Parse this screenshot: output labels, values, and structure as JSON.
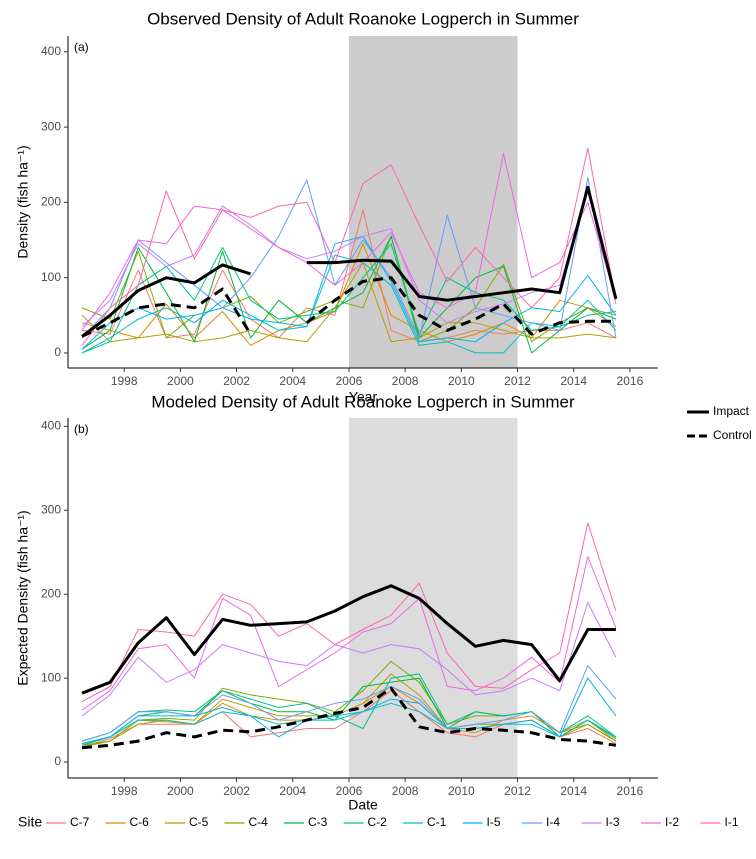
{
  "chart_data": [
    {
      "type": "line",
      "title": "Observed Density of Adult Roanoke Logperch in Summer",
      "annotation": "(a)",
      "x_label": "Year",
      "y_label": "Density (fish ha⁻¹)",
      "xlim": [
        1996,
        2017
      ],
      "xticks": [
        1998,
        2000,
        2002,
        2004,
        2006,
        2008,
        2010,
        2012,
        2014,
        2016
      ],
      "ylim": [
        -20,
        421
      ],
      "yticks": [
        0,
        100,
        200,
        300,
        400
      ],
      "shade": [
        2006,
        2012
      ],
      "shade_color": "#cccccc",
      "x": [
        1996.5,
        1997.5,
        1998.5,
        1999.5,
        2000.5,
        2001.5,
        2002.5,
        2003.5,
        2004.5,
        2005.5,
        2006.5,
        2007.5,
        2008.5,
        2009.5,
        2010.5,
        2011.5,
        2012.5,
        2013.5,
        2014.5,
        2015.5
      ],
      "series": [
        {
          "name": "C-7",
          "color": "#F8766D",
          "values": [
            30,
            25,
            110,
            20,
            25,
            110,
            45,
            20,
            60,
            50,
            190,
            30,
            15,
            20,
            30,
            25,
            30,
            30,
            40,
            20
          ]
        },
        {
          "name": "C-6",
          "color": "#DE8C00",
          "values": [
            40,
            30,
            20,
            65,
            20,
            55,
            10,
            30,
            40,
            55,
            145,
            50,
            30,
            15,
            25,
            40,
            20,
            70,
            60,
            35
          ]
        },
        {
          "name": "C-5",
          "color": "#B79F00",
          "values": [
            50,
            15,
            20,
            25,
            15,
            20,
            30,
            20,
            15,
            60,
            120,
            15,
            20,
            40,
            40,
            30,
            20,
            20,
            25,
            20
          ]
        },
        {
          "name": "C-4",
          "color": "#7CAE00",
          "values": [
            60,
            45,
            135,
            20,
            50,
            60,
            75,
            40,
            55,
            70,
            60,
            155,
            15,
            30,
            60,
            118,
            15,
            40,
            60,
            50
          ]
        },
        {
          "name": "C-3",
          "color": "#00BA38",
          "values": [
            5,
            30,
            140,
            80,
            15,
            135,
            20,
            70,
            40,
            60,
            80,
            155,
            20,
            60,
            100,
            115,
            0,
            30,
            60,
            45
          ]
        },
        {
          "name": "C-2",
          "color": "#00C08B",
          "values": [
            0,
            15,
            90,
            115,
            70,
            140,
            70,
            45,
            50,
            55,
            100,
            145,
            25,
            100,
            80,
            70,
            30,
            35,
            50,
            55
          ]
        },
        {
          "name": "C-1",
          "color": "#00BFC4",
          "values": [
            0,
            20,
            45,
            60,
            40,
            70,
            50,
            30,
            35,
            130,
            120,
            90,
            10,
            15,
            0,
            0,
            40,
            35,
            70,
            30
          ]
        },
        {
          "name": "I-5",
          "color": "#00B4F0",
          "values": [
            5,
            40,
            60,
            45,
            50,
            60,
            45,
            40,
            35,
            145,
            155,
            95,
            15,
            20,
            15,
            40,
            60,
            55,
            103,
            50
          ]
        },
        {
          "name": "I-4",
          "color": "#619CFF",
          "values": [
            20,
            60,
            150,
            120,
            90,
            60,
            100,
            155,
            230,
            90,
            150,
            100,
            20,
            183,
            60,
            50,
            40,
            30,
            233,
            20
          ]
        },
        {
          "name": "I-3",
          "color": "#C77CFF",
          "values": [
            35,
            70,
            145,
            115,
            130,
            195,
            170,
            140,
            125,
            135,
            155,
            165,
            70,
            40,
            55,
            65,
            80,
            90,
            215,
            65
          ]
        },
        {
          "name": "I-2",
          "color": "#F564E3",
          "values": [
            30,
            80,
            150,
            145,
            195,
            190,
            165,
            140,
            120,
            90,
            120,
            160,
            80,
            60,
            80,
            265,
            100,
            120,
            200,
            70
          ]
        },
        {
          "name": "I-1",
          "color": "#FF64B0",
          "values": [
            10,
            60,
            90,
            215,
            125,
            190,
            180,
            195,
            200,
            120,
            225,
            250,
            170,
            95,
            140,
            100,
            60,
            100,
            272,
            70
          ]
        }
      ],
      "means": [
        {
          "name": "Impact",
          "color": "#000000",
          "dash": "solid",
          "values": [
            22,
            50,
            83,
            100,
            93,
            117,
            105,
            null,
            120,
            120,
            123,
            122,
            75,
            70,
            75,
            80,
            85,
            80,
            220,
            72
          ]
        },
        {
          "name": "Control",
          "color": "#000000",
          "dash": "dashed",
          "values": [
            22,
            40,
            60,
            65,
            60,
            85,
            25,
            null,
            40,
            70,
            95,
            100,
            50,
            30,
            45,
            65,
            25,
            40,
            42,
            42
          ]
        }
      ]
    },
    {
      "type": "line",
      "title": "Modeled Density of Adult Roanoke Logperch in Summer",
      "annotation": "(b)",
      "x_label": "Date",
      "y_label": "Expected Density (fish ha⁻¹)",
      "xlim": [
        1996,
        2017
      ],
      "xticks": [
        1998,
        2000,
        2002,
        2004,
        2006,
        2008,
        2010,
        2012,
        2014,
        2016
      ],
      "ylim": [
        -19,
        410
      ],
      "yticks": [
        0,
        100,
        200,
        300,
        400
      ],
      "shade": [
        2006,
        2012
      ],
      "shade_color": "#dcdcdc",
      "x": [
        1996.5,
        1997.5,
        1998.5,
        1999.5,
        2000.5,
        2001.5,
        2002.5,
        2003.5,
        2004.5,
        2005.5,
        2006.5,
        2007.5,
        2008.5,
        2009.5,
        2010.5,
        2011.5,
        2012.5,
        2013.5,
        2014.5,
        2015.5
      ],
      "series": [
        {
          "name": "C-7",
          "color": "#F8766D",
          "values": [
            18,
            28,
            45,
            45,
            45,
            60,
            30,
            35,
            40,
            40,
            60,
            85,
            60,
            35,
            30,
            45,
            50,
            30,
            40,
            22
          ]
        },
        {
          "name": "C-6",
          "color": "#DE8C00",
          "values": [
            20,
            30,
            50,
            48,
            45,
            70,
            55,
            50,
            50,
            55,
            70,
            90,
            70,
            40,
            35,
            50,
            55,
            35,
            50,
            25
          ]
        },
        {
          "name": "C-5",
          "color": "#B79F00",
          "values": [
            18,
            25,
            45,
            50,
            45,
            75,
            65,
            55,
            55,
            55,
            70,
            105,
            80,
            40,
            45,
            45,
            50,
            30,
            45,
            25
          ]
        },
        {
          "name": "C-4",
          "color": "#7CAE00",
          "values": [
            20,
            25,
            50,
            52,
            50,
            88,
            80,
            75,
            70,
            60,
            85,
            120,
            95,
            45,
            55,
            55,
            60,
            35,
            45,
            25
          ]
        },
        {
          "name": "C-3",
          "color": "#00BA38",
          "values": [
            22,
            30,
            55,
            60,
            55,
            85,
            70,
            60,
            60,
            50,
            90,
            95,
            100,
            40,
            60,
            55,
            60,
            30,
            50,
            28
          ]
        },
        {
          "name": "C-2",
          "color": "#00C08B",
          "values": [
            25,
            35,
            60,
            62,
            60,
            85,
            75,
            65,
            70,
            55,
            40,
            100,
            105,
            45,
            60,
            55,
            60,
            35,
            55,
            30
          ]
        },
        {
          "name": "C-1",
          "color": "#00BFC4",
          "values": [
            20,
            30,
            50,
            50,
            45,
            60,
            55,
            45,
            50,
            50,
            60,
            70,
            60,
            40,
            40,
            45,
            45,
            30,
            50,
            30
          ]
        },
        {
          "name": "I-5",
          "color": "#00B4F0",
          "values": [
            22,
            30,
            55,
            55,
            55,
            65,
            55,
            30,
            50,
            55,
            60,
            75,
            70,
            40,
            40,
            45,
            50,
            30,
            100,
            55
          ]
        },
        {
          "name": "I-4",
          "color": "#619CFF",
          "values": [
            25,
            35,
            60,
            60,
            55,
            80,
            70,
            50,
            60,
            70,
            75,
            90,
            75,
            40,
            45,
            50,
            60,
            35,
            115,
            75
          ]
        },
        {
          "name": "I-3",
          "color": "#C77CFF",
          "values": [
            55,
            80,
            125,
            95,
            110,
            140,
            130,
            120,
            115,
            140,
            130,
            140,
            135,
            110,
            80,
            85,
            100,
            85,
            190,
            125
          ]
        },
        {
          "name": "I-2",
          "color": "#F564E3",
          "values": [
            62,
            85,
            135,
            140,
            100,
            195,
            175,
            90,
            110,
            130,
            155,
            165,
            195,
            90,
            85,
            100,
            125,
            95,
            245,
            160
          ]
        },
        {
          "name": "I-1",
          "color": "#FF64B0",
          "values": [
            72,
            90,
            158,
            155,
            150,
            200,
            188,
            150,
            165,
            140,
            158,
            175,
            213,
            130,
            90,
            88,
            110,
            130,
            285,
            180
          ]
        }
      ],
      "means": [
        {
          "name": "Impact",
          "color": "#000000",
          "dash": "solid",
          "values": [
            82,
            95,
            142,
            172,
            128,
            170,
            163,
            165,
            167,
            180,
            197,
            210,
            195,
            165,
            138,
            145,
            140,
            97,
            158,
            158
          ]
        },
        {
          "name": "Control",
          "color": "#000000",
          "dash": "dashed",
          "values": [
            17,
            20,
            25,
            35,
            30,
            38,
            36,
            42,
            50,
            58,
            65,
            88,
            42,
            35,
            40,
            38,
            35,
            27,
            25,
            20
          ]
        }
      ]
    }
  ],
  "legend": {
    "title": "Site"
  }
}
